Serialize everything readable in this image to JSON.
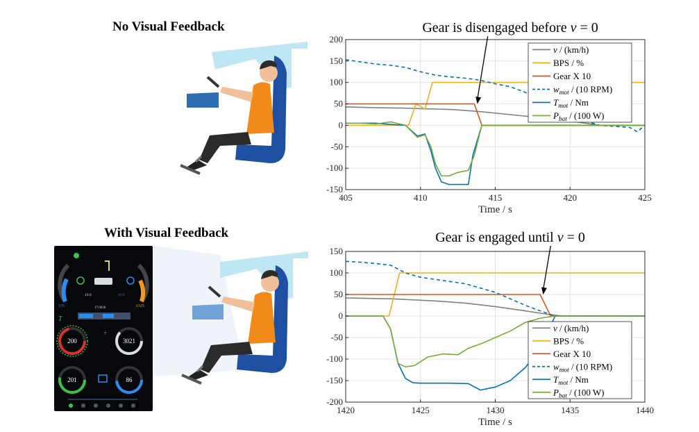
{
  "headings": {
    "no_feedback": "No Visual Feedback",
    "with_feedback": "With Visual Feedback"
  },
  "dashboard": {
    "top_left_value": "155",
    "top_right_value": "6325",
    "small_left_value": "10.0",
    "small_right_value": "41.6",
    "odometer": "17.0630",
    "gear_value": "7",
    "gauge_1_value": "200",
    "gauge_2_value": "3021",
    "gauge_3_value": "201",
    "gauge_4_value": "86",
    "torque_label": "T"
  },
  "colors": {
    "speed": "#808080",
    "bps": "#EDB120",
    "gear": "#D95319",
    "wmot": "#0072BD",
    "tmot": "#0072BD",
    "pbat": "#77AC30"
  },
  "chart_data": [
    {
      "type": "line",
      "title": "Gear is disengaged before v = 0",
      "title_parts": [
        "Gear is disengaged before ",
        "v",
        " = 0"
      ],
      "xlabel": "Time / s",
      "xlim": [
        405,
        425
      ],
      "ylim": [
        -150,
        200
      ],
      "xticks": [
        405,
        410,
        415,
        420,
        425
      ],
      "yticks": [
        -150,
        -100,
        -50,
        0,
        50,
        100,
        150,
        200
      ],
      "grid": true,
      "legend_position": "top-right",
      "annotation": {
        "text_ref": "title",
        "arrow_to": [
          413.8,
          50
        ]
      },
      "series": [
        {
          "name": "v / (km/h)",
          "legend": [
            [
              "v",
              "i"
            ],
            [
              " / (km/h)",
              ""
            ]
          ],
          "style": "solid",
          "color_key": "speed",
          "x": [
            405,
            407,
            409,
            410,
            412,
            414,
            416,
            418,
            420,
            421,
            422,
            425
          ],
          "y": [
            43,
            41,
            40,
            39,
            37,
            32,
            25,
            18,
            10,
            5,
            0,
            0
          ]
        },
        {
          "name": "BPS / %",
          "legend": [
            [
              "BPS / %",
              ""
            ]
          ],
          "style": "solid",
          "color_key": "bps",
          "x": [
            405,
            409.2,
            409.7,
            410.3,
            410.8,
            425
          ],
          "y": [
            0,
            0,
            50,
            38,
            100,
            100
          ]
        },
        {
          "name": "Gear X 10",
          "legend": [
            [
              "Gear X 10",
              ""
            ]
          ],
          "style": "solid",
          "color_key": "gear",
          "x": [
            405,
            413.6,
            414.1,
            425
          ],
          "y": [
            50,
            50,
            0,
            0
          ]
        },
        {
          "name": "w_mot / (10 RPM)",
          "legend": [
            [
              "w",
              "i"
            ],
            [
              "mot",
              "sub"
            ],
            [
              " / (10 RPM)",
              ""
            ]
          ],
          "style": "dashed",
          "color_key": "wmot",
          "x": [
            405,
            407,
            408,
            409,
            410,
            411,
            412,
            413,
            414,
            415,
            416,
            417,
            418,
            419,
            420,
            421,
            422,
            424,
            424.5,
            425
          ],
          "y": [
            153,
            143,
            140,
            135,
            125,
            117,
            113,
            110,
            105,
            97,
            90,
            77,
            60,
            42,
            25,
            10,
            0,
            -5,
            -15,
            0
          ]
        },
        {
          "name": "T_mot / Nm",
          "legend": [
            [
              "T",
              "i"
            ],
            [
              "mot",
              "sub"
            ],
            [
              " / Nm",
              ""
            ]
          ],
          "style": "solid",
          "color_key": "tmot",
          "x": [
            405,
            407,
            408,
            409,
            409.8,
            410.3,
            410.7,
            411.0,
            411.4,
            411.9,
            413.2,
            413.5,
            414.1,
            425
          ],
          "y": [
            5,
            5,
            2,
            0,
            -25,
            -20,
            -60,
            -100,
            -132,
            -138,
            -138,
            -70,
            0,
            0
          ]
        },
        {
          "name": "P_bat / (100 W)",
          "legend": [
            [
              "P",
              "i"
            ],
            [
              "bat",
              "sub"
            ],
            [
              " / (100 W)",
              ""
            ]
          ],
          "style": "solid",
          "color_key": "pbat",
          "x": [
            405,
            406,
            407,
            408,
            409,
            409.8,
            410.3,
            410.7,
            411.0,
            411.4,
            411.9,
            412.5,
            413.2,
            413.6,
            414.1,
            425
          ],
          "y": [
            5,
            5,
            3,
            8,
            0,
            -28,
            -22,
            -50,
            -90,
            -118,
            -118,
            -110,
            -105,
            -70,
            0,
            0
          ]
        }
      ]
    },
    {
      "type": "line",
      "title": "Gear is engaged until v = 0",
      "title_parts": [
        "Gear is engaged until ",
        "v",
        " = 0"
      ],
      "xlabel": "Time / s",
      "xlim": [
        1420,
        1440
      ],
      "ylim": [
        -200,
        150
      ],
      "xticks": [
        1420,
        1425,
        1430,
        1435,
        1440
      ],
      "yticks": [
        -200,
        -150,
        -100,
        -50,
        0,
        50,
        100,
        150
      ],
      "grid": true,
      "legend_position": "bottom-right",
      "annotation": {
        "text_ref": "title",
        "arrow_to": [
          1433.2,
          50
        ]
      },
      "series": [
        {
          "name": "v / (km/h)",
          "legend": [
            [
              "v",
              "i"
            ],
            [
              " / (km/h)",
              ""
            ]
          ],
          "style": "solid",
          "color_key": "speed",
          "x": [
            1420,
            1423,
            1426,
            1428,
            1430,
            1432,
            1433.5,
            1434.5,
            1440
          ],
          "y": [
            42,
            40,
            35,
            30,
            22,
            12,
            4,
            0,
            0
          ]
        },
        {
          "name": "BPS / %",
          "legend": [
            [
              "BPS / %",
              ""
            ]
          ],
          "style": "solid",
          "color_key": "bps",
          "x": [
            1420,
            1422.9,
            1423.6,
            1440
          ],
          "y": [
            0,
            0,
            100,
            100
          ]
        },
        {
          "name": "Gear X 10",
          "legend": [
            [
              "Gear X 10",
              ""
            ]
          ],
          "style": "solid",
          "color_key": "gear",
          "x": [
            1420,
            1433.0,
            1433.7,
            1440
          ],
          "y": [
            50,
            50,
            0,
            0
          ]
        },
        {
          "name": "w_mot / (10 RPM)",
          "legend": [
            [
              "w",
              "i"
            ],
            [
              "mot",
              "sub"
            ],
            [
              " / (10 RPM)",
              ""
            ]
          ],
          "style": "dashed",
          "color_key": "wmot",
          "x": [
            1420,
            1421,
            1422,
            1423,
            1424,
            1425,
            1426,
            1427,
            1428,
            1429,
            1430,
            1431,
            1432,
            1433,
            1434,
            1440
          ],
          "y": [
            127,
            125,
            122,
            118,
            100,
            90,
            85,
            80,
            75,
            65,
            55,
            40,
            25,
            12,
            0,
            0
          ]
        },
        {
          "name": "T_mot / Nm",
          "legend": [
            [
              "T",
              "i"
            ],
            [
              "mot",
              "sub"
            ],
            [
              " / Nm",
              ""
            ]
          ],
          "style": "solid",
          "color_key": "tmot",
          "x": [
            1420,
            1422.5,
            1423.0,
            1423.5,
            1424.0,
            1424.5,
            1425,
            1427,
            1428.2,
            1429,
            1430,
            1431,
            1432,
            1433,
            1434,
            1440
          ],
          "y": [
            0,
            0,
            -30,
            -110,
            -145,
            -155,
            -156,
            -156,
            -157,
            -172,
            -165,
            -150,
            -120,
            -75,
            0,
            0
          ]
        },
        {
          "name": "P_bat / (100 W)",
          "legend": [
            [
              "P",
              "i"
            ],
            [
              "bat",
              "sub"
            ],
            [
              " / (100 W)",
              ""
            ]
          ],
          "style": "solid",
          "color_key": "pbat",
          "x": [
            1420,
            1422.5,
            1423.0,
            1423.5,
            1424.0,
            1424.6,
            1425.5,
            1426.5,
            1427.5,
            1428.2,
            1429,
            1430,
            1431,
            1432,
            1433,
            1434,
            1440
          ],
          "y": [
            0,
            0,
            -30,
            -110,
            -118,
            -115,
            -95,
            -88,
            -90,
            -75,
            -65,
            -50,
            -35,
            -15,
            -5,
            0,
            0
          ]
        }
      ]
    }
  ]
}
